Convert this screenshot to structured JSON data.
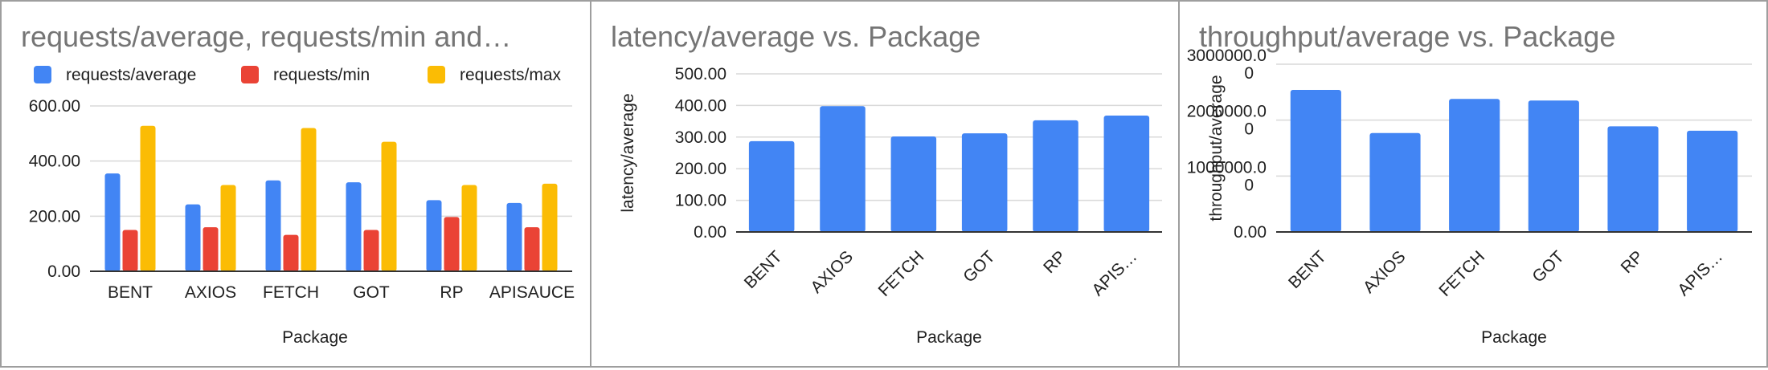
{
  "chart_data": [
    {
      "type": "bar",
      "title": "requests/average, requests/min and…",
      "xlabel": "Package",
      "ylabel": "",
      "categories": [
        "BENT",
        "AXIOS",
        "FETCH",
        "GOT",
        "RP",
        "APISAUCE"
      ],
      "series": [
        {
          "name": "requests/average",
          "color": "#4285f4",
          "values": [
            355,
            243,
            330,
            323,
            258,
            248
          ]
        },
        {
          "name": "requests/min",
          "color": "#ea4335",
          "values": [
            150,
            160,
            132,
            150,
            197,
            160
          ]
        },
        {
          "name": "requests/max",
          "color": "#fbbc04",
          "values": [
            528,
            313,
            520,
            470,
            313,
            318
          ]
        }
      ],
      "yticks": [
        "0.00",
        "200.00",
        "400.00",
        "600.00"
      ],
      "ylim": [
        0,
        600
      ],
      "legend": "top",
      "grid": true
    },
    {
      "type": "bar",
      "title": "latency/average vs. Package",
      "xlabel": "Package",
      "ylabel": "latency/average",
      "categories": [
        "BENT",
        "AXIOS",
        "FETCH",
        "GOT",
        "RP",
        "APIS…"
      ],
      "series": [
        {
          "color": "#4285f4",
          "values": [
            287,
            398,
            302,
            312,
            353,
            368
          ]
        }
      ],
      "yticks": [
        "0.00",
        "100.00",
        "200.00",
        "300.00",
        "400.00",
        "500.00"
      ],
      "ylim": [
        0,
        500
      ],
      "grid": true
    },
    {
      "type": "bar",
      "title": "throughput/average vs. Package",
      "xlabel": "Package",
      "ylabel": "throughput/average",
      "categories": [
        "BENT",
        "AXIOS",
        "FETCH",
        "GOT",
        "RP",
        "APIS…"
      ],
      "series": [
        {
          "color": "#4285f4",
          "values": [
            2540000,
            1770000,
            2380000,
            2350000,
            1890000,
            1810000
          ]
        }
      ],
      "yticks": [
        "0.00",
        "1000000.0\n0",
        "2000000.0\n0",
        "3000000.0\n0"
      ],
      "ylim": [
        0,
        3000000
      ],
      "grid": true
    }
  ]
}
